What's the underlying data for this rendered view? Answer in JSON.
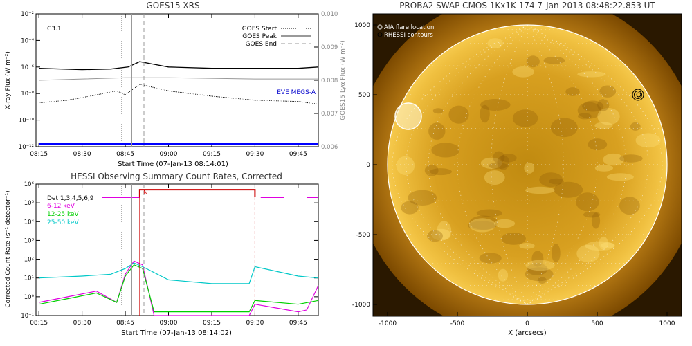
{
  "goes": {
    "title": "GOES15 XRS",
    "flare_class": "C3.1",
    "xlabel": "Start Time (07-Jan-13 08:14:01)",
    "ylabel": "X-ray Flux (W m⁻²)",
    "y2label": "GOES15 Lyα Flux (W m⁻²)",
    "eve_label": "EVE MEGS-A",
    "legend": [
      "GOES Start",
      "GOES Peak",
      "GOES End"
    ],
    "left_ticks": [
      "10⁻²",
      "10⁻⁴",
      "10⁻⁶",
      "10⁻⁸",
      "10⁻¹⁰",
      "10⁻¹²"
    ],
    "right_ticks": [
      "0.010",
      "0.009",
      "0.008",
      "0.007",
      "0.006"
    ],
    "time_ticks": [
      "08:15",
      "08:30",
      "08:45",
      "09:00",
      "09:15",
      "09:30",
      "09:45"
    ]
  },
  "hessi": {
    "title": "HESSI Observing Summary Count Rates, Corrected",
    "xlabel": "Start Time (07-Jan-13 08:14:02)",
    "ylabel": "Corrected Count Rate (s⁻¹ detector⁻¹)",
    "legend": [
      {
        "label": "Det 1,3,4,5,6,9",
        "color": "#000000"
      },
      {
        "label": "6-12 keV",
        "color": "#e000e0"
      },
      {
        "label": "12-25 keV",
        "color": "#00d000"
      },
      {
        "label": "25-50 keV",
        "color": "#00c8c8"
      }
    ],
    "night_flag": "N",
    "y_ticks": [
      "10⁶",
      "10⁵",
      "10⁴",
      "10³",
      "10²",
      "10¹",
      "10⁰",
      "10⁻¹"
    ],
    "time_ticks": [
      "08:15",
      "08:30",
      "08:45",
      "09:00",
      "09:15",
      "09:30",
      "09:45"
    ]
  },
  "swap": {
    "title": "PROBA2 SWAP CMOS 1Kx1K 174   7-Jan-2013 08:48:22.853 UT",
    "legend": [
      "AIA flare location",
      "RHESSI contours"
    ],
    "xlabel": "X (arcsecs)",
    "x_ticks": [
      "-1000",
      "-500",
      "0",
      "500",
      "1000"
    ],
    "y_ticks": [
      "1000",
      "500",
      "0",
      "-500",
      "-1000"
    ]
  },
  "chart_data": [
    {
      "type": "line",
      "title": "GOES15 XRS",
      "x_range": [
        "08:14",
        "09:52"
      ],
      "ylim_log10": [
        -12,
        -2
      ],
      "y2lim": [
        0.006,
        0.01
      ],
      "series": [
        {
          "name": "",
          "x": [
            "08:15",
            "08:30",
            "08:40",
            "08:46",
            "08:50",
            "08:55",
            "09:00",
            "09:15",
            "09:30",
            "09:45",
            "09:52"
          ],
          "log10_values": [
            -6.1,
            -6.2,
            -6.15,
            -6.0,
            -5.6,
            -5.8,
            -6.0,
            -6.1,
            -6.1,
            -6.1,
            -6.0
          ]
        },
        {
          "name": "",
          "x": [
            "08:15",
            "08:30",
            "08:45",
            "09:00",
            "09:30",
            "09:52"
          ],
          "log10_values": [
            -7.0,
            -6.9,
            -6.8,
            -6.8,
            -6.9,
            -6.9
          ]
        },
        {
          "name": "",
          "x": [
            "08:15",
            "08:25",
            "08:35",
            "08:42",
            "08:45",
            "08:50",
            "09:00",
            "09:15",
            "09:30",
            "09:45",
            "09:52"
          ],
          "log10_values": [
            -8.7,
            -8.5,
            -8.1,
            -7.8,
            -8.1,
            -7.3,
            -7.8,
            -8.2,
            -8.5,
            -8.6,
            -8.8
          ]
        },
        {
          "name": "EVE MEGS-A",
          "x": [
            "08:15",
            "09:52"
          ],
          "log10_values": [
            -11.8,
            -11.8
          ]
        }
      ],
      "markers": {
        "GOES Start": "08:44",
        "GOES Peak": "08:46",
        "GOES End": "08:51"
      }
    },
    {
      "type": "line",
      "title": "HESSI Observing Summary Count Rates, Corrected",
      "x_range": [
        "08:14",
        "09:52"
      ],
      "ylim_log10": [
        -1,
        6
      ],
      "series": [
        {
          "name": "6-12 keV",
          "x": [
            "08:15",
            "08:25",
            "08:35",
            "08:42",
            "08:45",
            "08:48",
            "08:51",
            "08:55",
            "09:15",
            "09:28",
            "09:30",
            "09:45",
            "09:48",
            "09:52"
          ],
          "log10_values": [
            -0.3,
            0,
            0.3,
            -0.3,
            1.2,
            1.9,
            1.7,
            -1.0,
            -1.0,
            -1.0,
            -0.4,
            -0.8,
            -0.7,
            0.6
          ]
        },
        {
          "name": "12-25 keV",
          "x": [
            "08:15",
            "08:25",
            "08:35",
            "08:42",
            "08:45",
            "08:48",
            "08:51",
            "08:55",
            "09:15",
            "09:28",
            "09:30",
            "09:45",
            "09:52"
          ],
          "log10_values": [
            -0.4,
            -0.1,
            0.2,
            -0.3,
            1.1,
            1.7,
            1.5,
            -0.8,
            -0.8,
            -0.8,
            -0.2,
            -0.4,
            -0.2
          ]
        },
        {
          "name": "25-50 keV",
          "x": [
            "08:15",
            "08:30",
            "08:40",
            "08:45",
            "08:48",
            "08:51",
            "09:00",
            "09:15",
            "09:28",
            "09:30",
            "09:45",
            "09:52"
          ],
          "log10_values": [
            1.0,
            1.1,
            1.2,
            1.5,
            1.8,
            1.6,
            0.9,
            0.7,
            0.7,
            1.6,
            1.1,
            1.0
          ]
        }
      ],
      "det_bar": {
        "log10_value": 5.3,
        "high_x": [
          "08:50",
          "09:30"
        ],
        "high_log10": 5.7
      }
    }
  ]
}
